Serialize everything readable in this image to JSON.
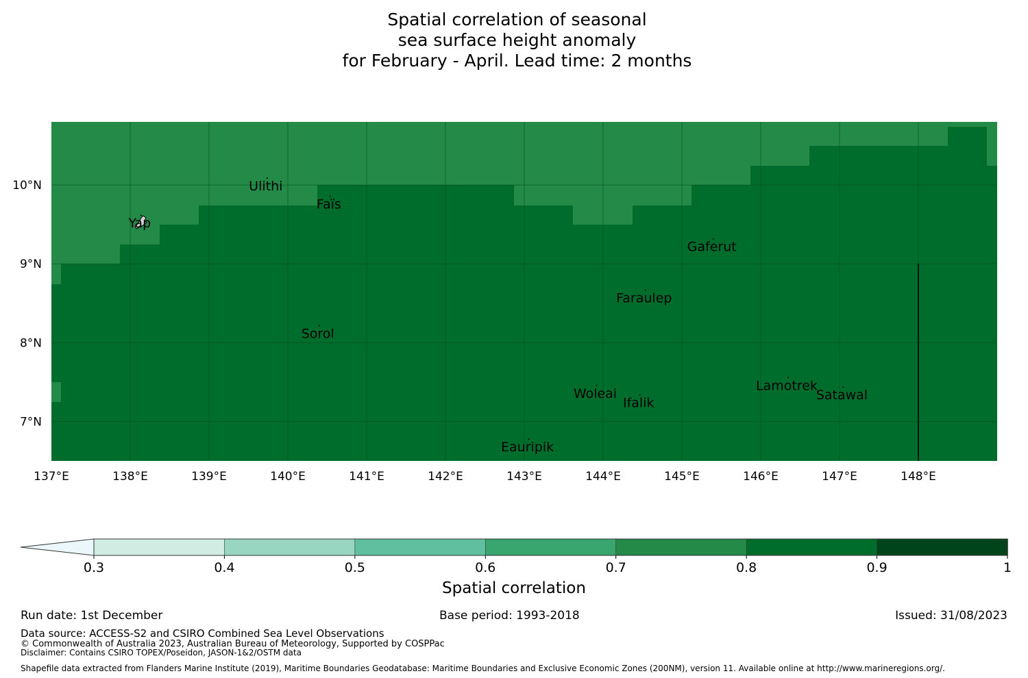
{
  "title": {
    "line1": "Spatial correlation of seasonal",
    "line2": "sea surface height anomaly",
    "line3": "for February - April. Lead time: 2 months"
  },
  "map": {
    "lat_labels": [
      "10°N",
      "9°N",
      "8°N",
      "7°N"
    ],
    "lon_labels": [
      "137°E",
      "138°E",
      "139°E",
      "140°E",
      "141°E",
      "142°E",
      "143°E",
      "144°E",
      "145°E",
      "146°E",
      "147°E",
      "148°E"
    ],
    "lon_range": [
      137.0,
      149.0
    ],
    "lat_range": [
      6.5,
      10.8
    ],
    "background_value": 0.85,
    "places": [
      {
        "name": "Ulithi",
        "lon": 139.72,
        "lat": 10.0
      },
      {
        "name": "Faïs",
        "lon": 140.52,
        "lat": 9.77
      },
      {
        "name": "Yap",
        "lon": 138.12,
        "lat": 9.53
      },
      {
        "name": "Gaferut",
        "lon": 145.38,
        "lat": 9.23
      },
      {
        "name": "Faraulep",
        "lon": 144.52,
        "lat": 8.58
      },
      {
        "name": "Sorol",
        "lon": 140.38,
        "lat": 8.13
      },
      {
        "name": "Woleai",
        "lon": 143.9,
        "lat": 7.37
      },
      {
        "name": "Ifalik",
        "lon": 144.45,
        "lat": 7.25
      },
      {
        "name": "Lamotrek",
        "lon": 146.33,
        "lat": 7.47
      },
      {
        "name": "Satawal",
        "lon": 147.03,
        "lat": 7.35
      },
      {
        "name": "Eauripik",
        "lon": 143.04,
        "lat": 6.69
      }
    ]
  },
  "colorbar": {
    "ticks": [
      "0.3",
      "0.4",
      "0.5",
      "0.6",
      "0.7",
      "0.8",
      "0.9",
      "1"
    ],
    "colors": [
      "#d1ede3",
      "#98d6c2",
      "#60bf9e",
      "#3aa66f",
      "#238a48",
      "#006d2c",
      "#00441b"
    ],
    "extend_color": "#ebf7fa",
    "label": "Spatial correlation"
  },
  "footer": {
    "run_date": "Run date: 1st December",
    "base_period": "Base period: 1993-2018",
    "issued": "Issued: 31/08/2023",
    "data_source": "Data source: ACCESS-S2 and CSIRO Combined Sea Level Observations",
    "copyright": "© Commonwealth of Australia 2023, Australian Bureau of Meteorology, Supported by COSPPac",
    "disclaimer": "Disclaimer: Contains CSIRO TOPEX/Poseidon, JASON-1&2/OSTM data",
    "shapefile": "Shapefile data extracted from Flanders Marine Institute (2019), Maritime Boundaries Geodatabase: Maritime Boundaries and Exclusive Economic Zones (200NM), version 11. Available online at http://www.marineregions.org/."
  }
}
